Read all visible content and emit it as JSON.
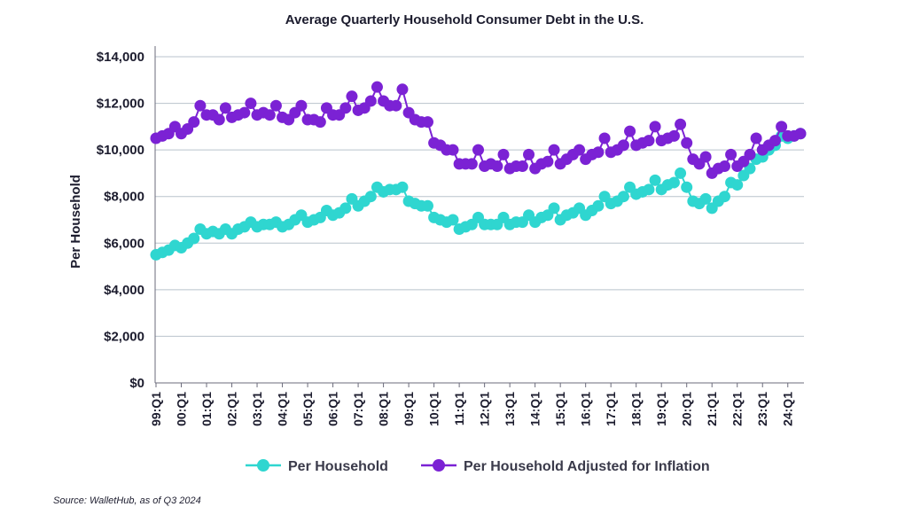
{
  "chart_data": {
    "type": "line",
    "title": "Average Quarterly Household Consumer Debt in the U.S.",
    "ylabel": "Per Household",
    "xlabel": "",
    "ylim": [
      0,
      14000
    ],
    "y_ticks": [
      0,
      2000,
      4000,
      6000,
      8000,
      10000,
      12000,
      14000
    ],
    "y_tick_labels": [
      "$0",
      "$2,000",
      "$4,000",
      "$6,000",
      "$8,000",
      "$10,000",
      "$12,000",
      "$14,000"
    ],
    "x_tick_labels": [
      "99:Q1",
      "00:Q1",
      "01:Q1",
      "02:Q1",
      "03:Q1",
      "04:Q1",
      "05:Q1",
      "06:Q1",
      "07:Q1",
      "08:Q1",
      "09:Q1",
      "10:Q1",
      "11:Q1",
      "12:Q1",
      "13:Q1",
      "14:Q1",
      "15:Q1",
      "16:Q1",
      "17:Q1",
      "18:Q1",
      "19:Q1",
      "20:Q1",
      "21:Q1",
      "22:Q1",
      "23:Q1",
      "24:Q1"
    ],
    "points_per_year": 4,
    "grid": true,
    "legend_position": "bottom",
    "series": [
      {
        "name": "Per Household",
        "color": "#2fd6d0",
        "values": [
          5500,
          5600,
          5700,
          5900,
          5800,
          6000,
          6200,
          6600,
          6400,
          6500,
          6400,
          6600,
          6400,
          6600,
          6700,
          6900,
          6700,
          6800,
          6800,
          6900,
          6700,
          6800,
          7000,
          7200,
          6900,
          7000,
          7100,
          7400,
          7200,
          7300,
          7500,
          7900,
          7600,
          7800,
          8000,
          8400,
          8200,
          8300,
          8300,
          8400,
          7800,
          7700,
          7600,
          7600,
          7100,
          7000,
          6900,
          7000,
          6600,
          6700,
          6800,
          7100,
          6800,
          6800,
          6800,
          7100,
          6800,
          6900,
          6900,
          7200,
          6900,
          7100,
          7200,
          7500,
          7000,
          7200,
          7300,
          7500,
          7200,
          7400,
          7600,
          8000,
          7700,
          7800,
          8000,
          8400,
          8100,
          8200,
          8300,
          8700,
          8300,
          8500,
          8600,
          9000,
          8400,
          7800,
          7700,
          7900,
          7500,
          7800,
          8000,
          8600,
          8500,
          8900,
          9200,
          9600,
          9700,
          10000,
          10200,
          10600,
          10500,
          10600,
          10700
        ]
      },
      {
        "name": "Per Household Adjusted for Inflation",
        "color": "#7b22d4",
        "values": [
          10500,
          10600,
          10700,
          11000,
          10700,
          10900,
          11200,
          11900,
          11500,
          11500,
          11300,
          11800,
          11400,
          11500,
          11600,
          12000,
          11500,
          11600,
          11500,
          11900,
          11400,
          11300,
          11600,
          11900,
          11300,
          11300,
          11200,
          11800,
          11500,
          11500,
          11800,
          12300,
          11700,
          11800,
          12100,
          12700,
          12100,
          11900,
          11900,
          12600,
          11600,
          11300,
          11200,
          11200,
          10300,
          10200,
          10000,
          10000,
          9400,
          9400,
          9400,
          10000,
          9300,
          9400,
          9300,
          9800,
          9200,
          9300,
          9300,
          9800,
          9200,
          9400,
          9500,
          10000,
          9400,
          9600,
          9800,
          10000,
          9600,
          9800,
          9900,
          10500,
          9900,
          10000,
          10200,
          10800,
          10200,
          10300,
          10400,
          11000,
          10400,
          10500,
          10600,
          11100,
          10300,
          9600,
          9400,
          9700,
          9000,
          9200,
          9300,
          9800,
          9300,
          9500,
          9800,
          10500,
          10000,
          10200,
          10400,
          11000,
          10600,
          10600,
          10700
        ]
      }
    ]
  },
  "source_note": "Source: WalletHub, as of Q3 2024"
}
